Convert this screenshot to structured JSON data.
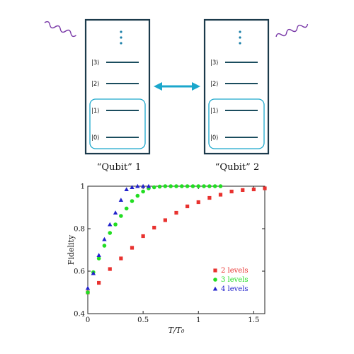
{
  "diagram": {
    "qubits": [
      {
        "label": "“Qubit” 1",
        "levels": [
          "|3⟩",
          "|2⟩",
          "|1⟩",
          "|0⟩"
        ]
      },
      {
        "label": "“Qubit” 2",
        "levels": [
          "|3⟩",
          "|2⟩",
          "|1⟩",
          "|0⟩"
        ]
      }
    ],
    "colors": {
      "box": "#1b3a4b",
      "level_line": "#1b4d5e",
      "highlight": "#1ba7cc",
      "arrow": "#1ba7cc",
      "wave": "#7a3aa8",
      "dots": "#1b7fa8"
    }
  },
  "chart_data": {
    "type": "scatter",
    "xlabel": "T/T₀",
    "ylabel": "Fidelity",
    "xlim": [
      0,
      1.6
    ],
    "ylim": [
      0.4,
      1.0
    ],
    "xticks": [
      "0",
      "0.5",
      "1",
      "1.5"
    ],
    "yticks": [
      "0.4",
      "0.6",
      "0.8",
      "1"
    ],
    "legend_position": "bottom-right",
    "series": [
      {
        "name": "2 levels",
        "marker": "square",
        "color": "#e8322f",
        "x": [
          0.0,
          0.1,
          0.2,
          0.3,
          0.4,
          0.5,
          0.6,
          0.7,
          0.8,
          0.9,
          1.0,
          1.1,
          1.2,
          1.3,
          1.4,
          1.5,
          1.6
        ],
        "y": [
          0.5,
          0.545,
          0.61,
          0.66,
          0.71,
          0.765,
          0.805,
          0.84,
          0.875,
          0.905,
          0.925,
          0.945,
          0.96,
          0.975,
          0.982,
          0.985,
          0.99
        ]
      },
      {
        "name": "3 levels",
        "marker": "circle",
        "color": "#22dd22",
        "x": [
          0.0,
          0.05,
          0.1,
          0.15,
          0.2,
          0.25,
          0.3,
          0.35,
          0.4,
          0.45,
          0.5,
          0.55,
          0.6,
          0.65,
          0.7,
          0.75,
          0.8,
          0.85,
          0.9,
          0.95,
          1.0,
          1.05,
          1.1,
          1.15,
          1.2
        ],
        "y": [
          0.5,
          0.595,
          0.66,
          0.72,
          0.78,
          0.82,
          0.86,
          0.895,
          0.93,
          0.955,
          0.975,
          0.99,
          0.995,
          0.998,
          1.0,
          1.0,
          1.0,
          1.0,
          1.0,
          1.0,
          1.0,
          1.0,
          1.0,
          1.0,
          1.0
        ]
      },
      {
        "name": "4 levels",
        "marker": "triangle",
        "color": "#2222cc",
        "x": [
          0.0,
          0.05,
          0.1,
          0.15,
          0.2,
          0.25,
          0.3,
          0.35,
          0.4,
          0.45,
          0.5,
          0.55
        ],
        "y": [
          0.52,
          0.59,
          0.675,
          0.75,
          0.82,
          0.875,
          0.935,
          0.985,
          0.995,
          1.0,
          1.0,
          1.0
        ]
      }
    ]
  }
}
